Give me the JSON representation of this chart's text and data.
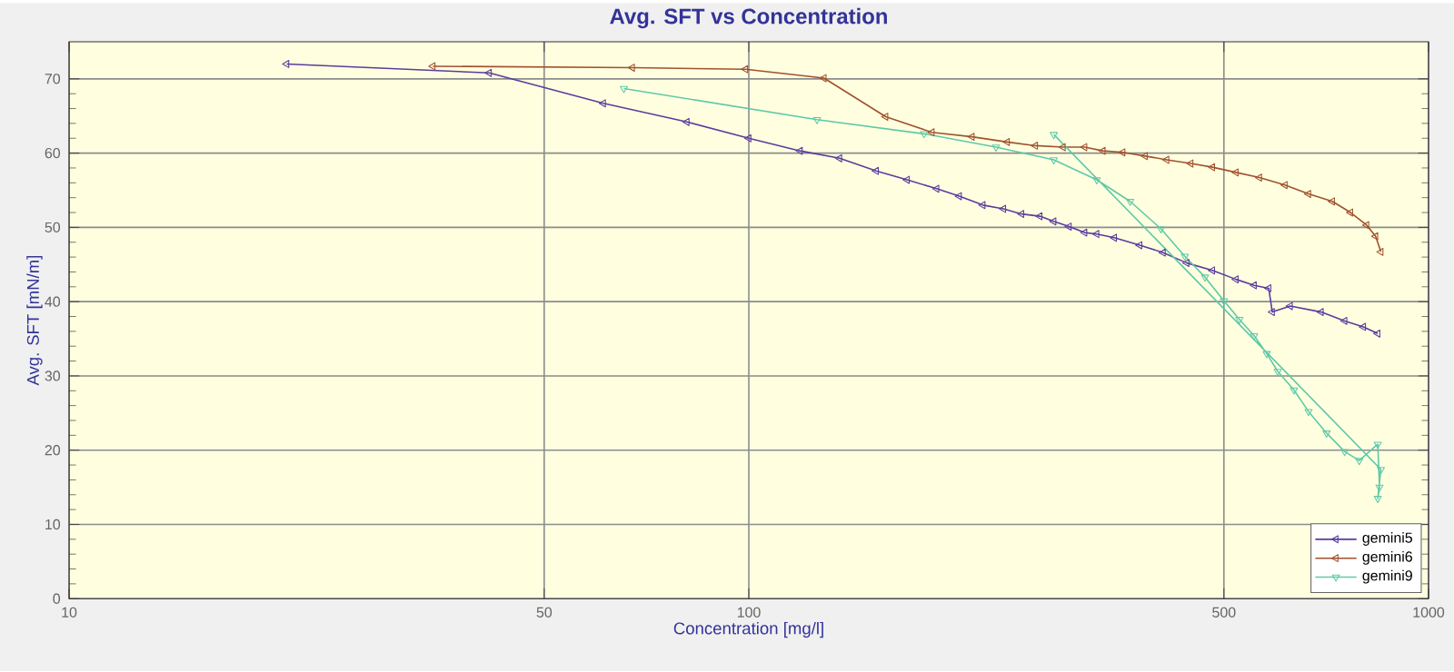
{
  "chart_data": {
    "type": "line",
    "title": "Avg. SFT vs Concentration",
    "xlabel": "Concentration [mg/l]",
    "ylabel": "Avg. SFT [mN/m]",
    "log": "x",
    "xlim": [
      10,
      1000
    ],
    "xticks": [
      10,
      50,
      100,
      500,
      1000
    ],
    "ylim": [
      0,
      75
    ],
    "yticks": [
      0,
      10,
      20,
      30,
      40,
      50,
      60,
      70
    ],
    "grid": true,
    "legend": "bottom right",
    "marker": "triangle",
    "series": [
      {
        "name": "gemini5",
        "color": "#5b3c9c",
        "x": [
          20.9,
          41.5,
          61.1,
          81.1,
          100,
          119,
          136,
          154,
          171,
          189,
          204,
          221,
          237,
          252,
          268,
          281,
          296,
          312,
          325,
          345,
          376,
          407,
          441,
          481,
          521,
          554,
          582,
          589,
          626,
          695,
          753,
          802,
          842
        ],
        "values": [
          72.0,
          70.8,
          66.7,
          64.2,
          62.0,
          60.3,
          59.3,
          57.6,
          56.4,
          55.2,
          54.2,
          53.0,
          52.5,
          51.8,
          51.5,
          50.8,
          50.1,
          49.3,
          49.1,
          48.6,
          47.6,
          46.6,
          45.2,
          44.2,
          43.0,
          42.2,
          41.8,
          38.6,
          39.4,
          38.6,
          37.4,
          36.6,
          35.7
        ]
      },
      {
        "name": "gemini6",
        "color": "#a0522d",
        "x": [
          34.3,
          67.4,
          98.9,
          129,
          159,
          186,
          213,
          240,
          264,
          290,
          312,
          332,
          355,
          383,
          412,
          447,
          481,
          521,
          564,
          615,
          666,
          722,
          768,
          811,
          836,
          851
        ],
        "values": [
          71.7,
          71.5,
          71.3,
          70.1,
          64.9,
          62.8,
          62.2,
          61.5,
          61.0,
          60.8,
          60.8,
          60.3,
          60.1,
          59.6,
          59.1,
          58.6,
          58.1,
          57.4,
          56.7,
          55.7,
          54.5,
          53.5,
          52.0,
          50.3,
          48.8,
          46.7
        ]
      },
      {
        "name": "gemini9",
        "color": "#5fc9a8",
        "x": [
          65.5,
          126,
          181,
          231,
          281,
          325,
          364,
          404,
          438,
          469,
          500,
          527,
          554,
          578,
          600,
          634,
          666,
          708,
          753,
          791,
          842,
          847,
          842,
          851,
          281
        ],
        "values": [
          68.7,
          64.5,
          62.6,
          60.8,
          59.1,
          56.4,
          53.5,
          49.8,
          46.1,
          43.3,
          40.1,
          37.6,
          35.4,
          33.0,
          30.6,
          28.1,
          25.2,
          22.3,
          19.8,
          18.6,
          20.8,
          15.0,
          13.5,
          17.4,
          62.5
        ]
      }
    ]
  }
}
